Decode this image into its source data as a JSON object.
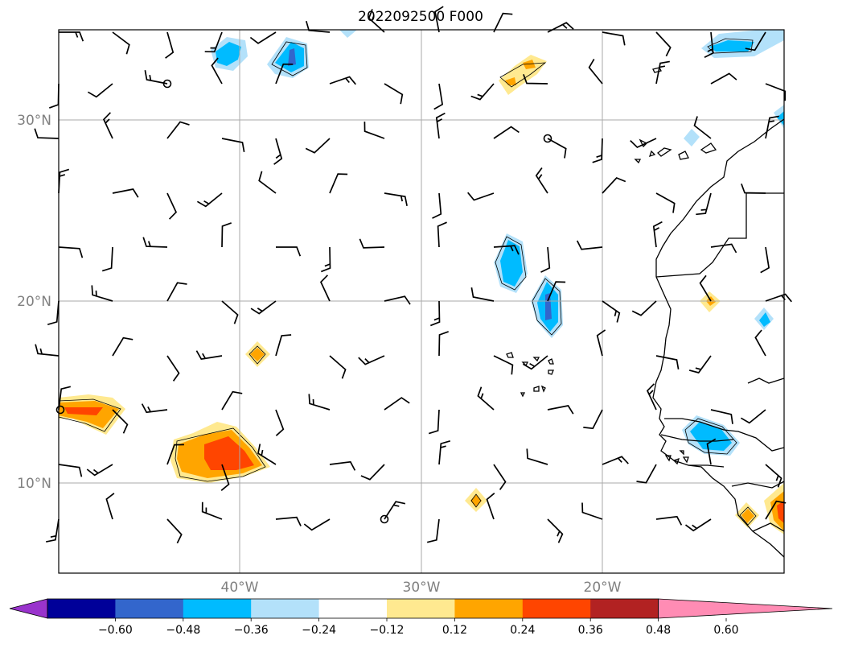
{
  "title": "2022092500 F000",
  "lat_labels": [
    "30°N",
    "20°N",
    "10°N"
  ],
  "lon_labels": [
    "40°W",
    "30°W",
    "20°W"
  ],
  "colorbar": {
    "ticks": [
      "−0.60",
      "−0.48",
      "−0.36",
      "−0.24",
      "−0.12",
      "0.12",
      "0.24",
      "0.36",
      "0.48",
      "0.60"
    ],
    "colors": [
      "#9933cc",
      "#000099",
      "#3366cc",
      "#00bbff",
      "#b3e1fa",
      "#ffffff",
      "#ffe990",
      "#ffa500",
      "#ff4500",
      "#b22222",
      "#ff8cb4"
    ]
  },
  "map": {
    "lon_range": [
      -50,
      -10
    ],
    "lat_range": [
      5,
      35
    ],
    "gridlines": true,
    "projection": "PlateCarree",
    "field": "wind barbs with shaded contours",
    "shading_colors": {
      "light_blue": "#b3e1fa",
      "blue": "#00bbff",
      "dark_blue": "#3366cc",
      "light_orange": "#ffe990",
      "orange": "#ffa500",
      "red_orange": "#ff4500"
    }
  }
}
